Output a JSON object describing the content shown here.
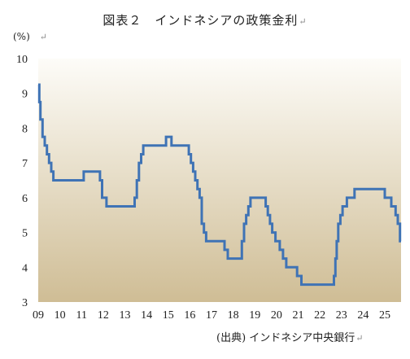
{
  "chart_data": {
    "type": "line",
    "title": "図表２　インドネシアの政策金利",
    "ylabel": "(%)",
    "source": "(出典) インドネシア中央銀行",
    "return_mark": "↵",
    "ylim": [
      3,
      10
    ],
    "yticks": [
      3,
      4,
      5,
      6,
      7,
      8,
      9,
      10
    ],
    "xlim": [
      2009.0,
      2025.75
    ],
    "xticks": [
      "09",
      "10",
      "11",
      "12",
      "13",
      "14",
      "15",
      "16",
      "17",
      "18",
      "19",
      "20",
      "21",
      "22",
      "23",
      "24",
      "25"
    ],
    "grid": false,
    "line_color": "#3f73b5",
    "background_gradient": [
      "#fdfcf8",
      "#cfbd95"
    ],
    "series": [
      {
        "step": "post",
        "x": [
          2009.0,
          2009.05,
          2009.1,
          2009.2,
          2009.3,
          2009.4,
          2009.5,
          2009.6,
          2009.7,
          2011.1,
          2011.85,
          2011.95,
          2012.15,
          2013.45,
          2013.55,
          2013.65,
          2013.75,
          2013.85,
          2013.95,
          2014.9,
          2015.15,
          2015.95,
          2016.05,
          2016.15,
          2016.25,
          2016.35,
          2016.45,
          2016.55,
          2016.65,
          2016.75,
          2017.6,
          2017.75,
          2018.4,
          2018.5,
          2018.6,
          2018.7,
          2018.8,
          2018.95,
          2019.5,
          2019.6,
          2019.7,
          2019.8,
          2019.95,
          2020.15,
          2020.3,
          2020.45,
          2020.6,
          2020.95,
          2021.15,
          2022.65,
          2022.72,
          2022.78,
          2022.85,
          2022.95,
          2023.05,
          2023.25,
          2023.6,
          2025.0,
          2025.3,
          2025.5,
          2025.6,
          2025.7,
          2025.75
        ],
        "y": [
          9.25,
          8.75,
          8.25,
          7.75,
          7.5,
          7.25,
          7.0,
          6.75,
          6.5,
          6.75,
          6.5,
          6.0,
          5.75,
          6.0,
          6.5,
          7.0,
          7.25,
          7.5,
          7.5,
          7.75,
          7.5,
          7.25,
          7.0,
          6.75,
          6.5,
          6.25,
          6.0,
          5.25,
          5.0,
          4.75,
          4.5,
          4.25,
          4.75,
          5.25,
          5.5,
          5.75,
          6.0,
          6.0,
          5.75,
          5.5,
          5.25,
          5.0,
          4.75,
          4.5,
          4.25,
          4.0,
          4.0,
          3.75,
          3.5,
          3.75,
          4.25,
          4.75,
          5.25,
          5.5,
          5.75,
          6.0,
          6.25,
          6.0,
          5.75,
          5.5,
          5.25,
          4.75,
          4.75
        ]
      }
    ]
  }
}
